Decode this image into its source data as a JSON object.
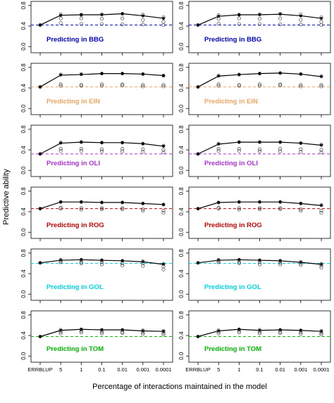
{
  "ylabel": "Predictive ability",
  "xlabel": "Percentage of interactions maintained in the model",
  "categories": [
    "ERRBLUP",
    "5",
    "1",
    "0.1",
    "0.01",
    "0.001",
    "0.0001"
  ],
  "ylim": [
    -0.12,
    0.88
  ],
  "yticks": [
    {
      "value": 0,
      "label": "0.0"
    },
    {
      "value": 0.4,
      "label": "0.4"
    },
    {
      "value": 0.8,
      "label": "0.8"
    }
  ],
  "chart_data": [
    {
      "type": "line",
      "annotation": "Predicting in BBG",
      "color": "#0000cc",
      "baseline": 0.42,
      "values": [
        0.42,
        0.61,
        0.62,
        0.62,
        0.64,
        0.6,
        0.55
      ],
      "replicates": [
        [
          0.42
        ],
        [
          0.63,
          0.55,
          0.46
        ],
        [
          0.62,
          0.55,
          0.44
        ],
        [
          0.63,
          0.54,
          0.44
        ],
        [
          0.64,
          0.55,
          0.43
        ],
        [
          0.62,
          0.52,
          0.43
        ],
        [
          0.57,
          0.48,
          0.42
        ]
      ]
    },
    {
      "type": "line",
      "annotation": "Predicting in BBG",
      "color": "#0000cc",
      "baseline": 0.42,
      "values": [
        0.42,
        0.59,
        0.62,
        0.62,
        0.63,
        0.6,
        0.55
      ],
      "replicates": [
        [
          0.42
        ],
        [
          0.61,
          0.54,
          0.45
        ],
        [
          0.62,
          0.55,
          0.44
        ],
        [
          0.63,
          0.54,
          0.44
        ],
        [
          0.64,
          0.55,
          0.43
        ],
        [
          0.63,
          0.52,
          0.43
        ],
        [
          0.57,
          0.48,
          0.42
        ]
      ]
    },
    {
      "type": "line",
      "annotation": "Predicting in EIN",
      "color": "#f4a460",
      "baseline": 0.42,
      "values": [
        0.42,
        0.65,
        0.66,
        0.68,
        0.68,
        0.67,
        0.64
      ],
      "replicates": [
        [
          0.42
        ],
        [
          0.66,
          0.47,
          0.44
        ],
        [
          0.67,
          0.46,
          0.44
        ],
        [
          0.68,
          0.47,
          0.44
        ],
        [
          0.68,
          0.47,
          0.45
        ],
        [
          0.67,
          0.46,
          0.43
        ],
        [
          0.64,
          0.46,
          0.43
        ]
      ]
    },
    {
      "type": "line",
      "annotation": "Predicting in EIN",
      "color": "#f4a460",
      "baseline": 0.42,
      "values": [
        0.42,
        0.63,
        0.66,
        0.68,
        0.69,
        0.67,
        0.62
      ],
      "replicates": [
        [
          0.42
        ],
        [
          0.64,
          0.47,
          0.44
        ],
        [
          0.66,
          0.46,
          0.44
        ],
        [
          0.68,
          0.47,
          0.44
        ],
        [
          0.69,
          0.47,
          0.45
        ],
        [
          0.67,
          0.46,
          0.43
        ],
        [
          0.63,
          0.46,
          0.43
        ]
      ]
    },
    {
      "type": "line",
      "annotation": "Predicting in OLI",
      "color": "#b030e0",
      "baseline": 0.32,
      "values": [
        0.32,
        0.53,
        0.55,
        0.54,
        0.54,
        0.52,
        0.47
      ],
      "replicates": [
        [
          0.32
        ],
        [
          0.54,
          0.42,
          0.38
        ],
        [
          0.55,
          0.42,
          0.38
        ],
        [
          0.54,
          0.41,
          0.37
        ],
        [
          0.54,
          0.42,
          0.37
        ],
        [
          0.52,
          0.41,
          0.36
        ],
        [
          0.48,
          0.4,
          0.35
        ]
      ]
    },
    {
      "type": "line",
      "annotation": "Predicting in OLI",
      "color": "#b030e0",
      "baseline": 0.32,
      "values": [
        0.32,
        0.51,
        0.55,
        0.55,
        0.55,
        0.53,
        0.49
      ],
      "replicates": [
        [
          0.32
        ],
        [
          0.52,
          0.42,
          0.38
        ],
        [
          0.55,
          0.42,
          0.38
        ],
        [
          0.55,
          0.41,
          0.37
        ],
        [
          0.55,
          0.42,
          0.37
        ],
        [
          0.53,
          0.41,
          0.36
        ],
        [
          0.5,
          0.4,
          0.35
        ]
      ]
    },
    {
      "type": "line",
      "annotation": "Predicting in ROG",
      "color": "#cc0000",
      "baseline": 0.46,
      "values": [
        0.46,
        0.59,
        0.59,
        0.58,
        0.58,
        0.56,
        0.54
      ],
      "replicates": [
        [
          0.46
        ],
        [
          0.59,
          0.48,
          0.46
        ],
        [
          0.59,
          0.47,
          0.44
        ],
        [
          0.58,
          0.47,
          0.45
        ],
        [
          0.58,
          0.47,
          0.45
        ],
        [
          0.56,
          0.45,
          0.42
        ],
        [
          0.54,
          0.42,
          0.38
        ]
      ]
    },
    {
      "type": "line",
      "annotation": "Predicting in ROG",
      "color": "#cc0000",
      "baseline": 0.46,
      "values": [
        0.46,
        0.58,
        0.59,
        0.59,
        0.59,
        0.56,
        0.52
      ],
      "replicates": [
        [
          0.46
        ],
        [
          0.58,
          0.48,
          0.46
        ],
        [
          0.59,
          0.47,
          0.44
        ],
        [
          0.59,
          0.47,
          0.45
        ],
        [
          0.59,
          0.47,
          0.45
        ],
        [
          0.56,
          0.45,
          0.42
        ],
        [
          0.53,
          0.42,
          0.38
        ]
      ]
    },
    {
      "type": "line",
      "annotation": "Predicting in GOL",
      "color": "#00d8e8",
      "baseline": 0.6,
      "values": [
        0.61,
        0.66,
        0.67,
        0.66,
        0.65,
        0.63,
        0.58
      ],
      "replicates": [
        [
          0.61
        ],
        [
          0.67,
          0.64,
          0.62
        ],
        [
          0.67,
          0.62,
          0.6
        ],
        [
          0.66,
          0.62,
          0.58
        ],
        [
          0.65,
          0.6,
          0.56
        ],
        [
          0.64,
          0.6,
          0.55
        ],
        [
          0.59,
          0.54,
          0.48
        ]
      ]
    },
    {
      "type": "line",
      "annotation": "Predicting in GOL",
      "color": "#00d8e8",
      "baseline": 0.6,
      "values": [
        0.61,
        0.66,
        0.67,
        0.66,
        0.65,
        0.62,
        0.58
      ],
      "replicates": [
        [
          0.61
        ],
        [
          0.67,
          0.64,
          0.62
        ],
        [
          0.67,
          0.62,
          0.6
        ],
        [
          0.66,
          0.62,
          0.58
        ],
        [
          0.65,
          0.61,
          0.58
        ],
        [
          0.63,
          0.6,
          0.57
        ],
        [
          0.59,
          0.56,
          0.52
        ]
      ]
    },
    {
      "type": "line",
      "annotation": "Predicting in TOM",
      "color": "#00bb00",
      "baseline": 0.38,
      "values": [
        0.38,
        0.5,
        0.52,
        0.51,
        0.51,
        0.49,
        0.48
      ],
      "replicates": [
        [
          0.38
        ],
        [
          0.51,
          0.47,
          0.44
        ],
        [
          0.52,
          0.49,
          0.46
        ],
        [
          0.51,
          0.47,
          0.44
        ],
        [
          0.51,
          0.47,
          0.45
        ],
        [
          0.5,
          0.46,
          0.43
        ],
        [
          0.49,
          0.45,
          0.42
        ]
      ]
    },
    {
      "type": "line",
      "annotation": "Predicting in TOM",
      "color": "#00bb00",
      "baseline": 0.38,
      "values": [
        0.38,
        0.49,
        0.52,
        0.5,
        0.51,
        0.5,
        0.48
      ],
      "replicates": [
        [
          0.38
        ],
        [
          0.5,
          0.47,
          0.44
        ],
        [
          0.52,
          0.49,
          0.46
        ],
        [
          0.51,
          0.47,
          0.44
        ],
        [
          0.51,
          0.47,
          0.45
        ],
        [
          0.5,
          0.46,
          0.43
        ],
        [
          0.49,
          0.45,
          0.42
        ]
      ]
    }
  ]
}
